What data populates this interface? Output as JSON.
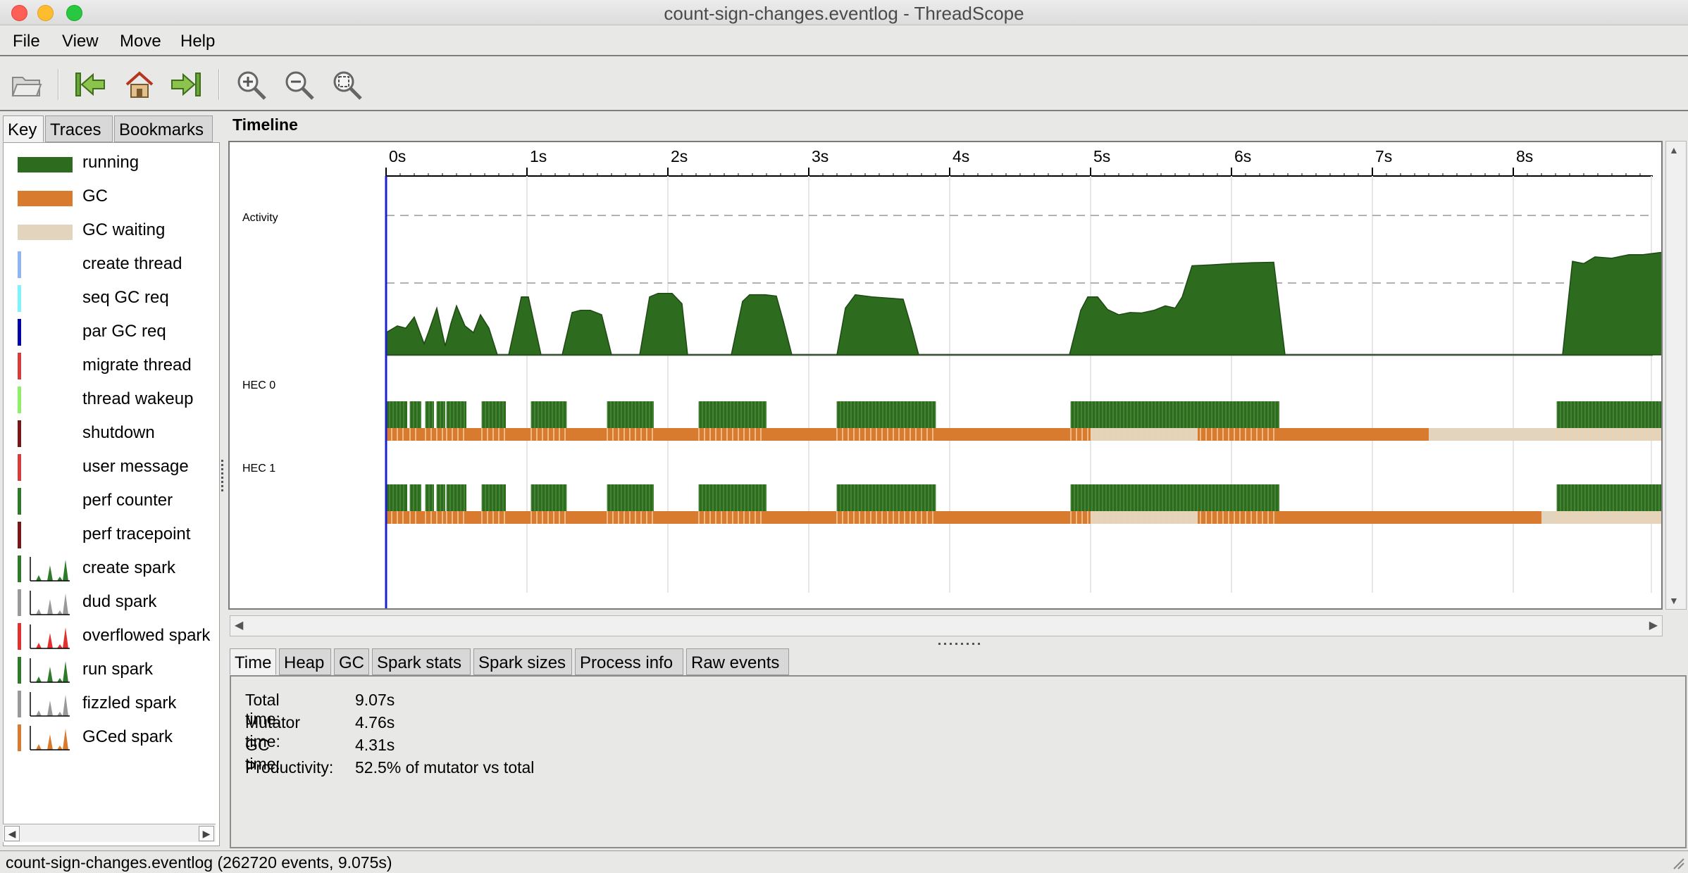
{
  "window": {
    "title": "count-sign-changes.eventlog - ThreadScope"
  },
  "menu": [
    "File",
    "View",
    "Move",
    "Help"
  ],
  "toolbar": {
    "icons": [
      "open-folder-icon",
      "jump-to-start-icon",
      "home-icon",
      "jump-to-end-icon",
      "zoom-in-icon",
      "zoom-out-icon",
      "zoom-fit-icon"
    ]
  },
  "left_tabs": [
    "Key",
    "Traces",
    "Bookmarks"
  ],
  "colors": {
    "running": "#2d6b1f",
    "gc": "#d97b2f",
    "gc_waiting": "#e3d5bd",
    "create_thread": "#8fb4f5",
    "seq_gc_req": "#7cf4f9",
    "par_gc_req": "#0000a8",
    "migrate_thread": "#d73c3c",
    "thread_wakeup": "#8ef066",
    "shutdown": "#7a1616",
    "user_message": "#d73c3c",
    "perf_counter": "#2d7a2a",
    "perf_tracepoint": "#7a1616",
    "spark_create": "#2d7a2a",
    "spark_dud": "#999999",
    "spark_overflowed": "#e3302e",
    "spark_run": "#2d7a2a",
    "spark_fizzled": "#999999",
    "spark_gced": "#d97b2f",
    "cursor": "#1a22c8"
  },
  "key": [
    {
      "label": "running",
      "kind": "swatch",
      "color_key": "running"
    },
    {
      "label": "GC",
      "kind": "swatch",
      "color_key": "gc"
    },
    {
      "label": "GC waiting",
      "kind": "swatch",
      "color_key": "gc_waiting"
    },
    {
      "label": "create thread",
      "kind": "bar",
      "color_key": "create_thread"
    },
    {
      "label": "seq GC req",
      "kind": "bar",
      "color_key": "seq_gc_req"
    },
    {
      "label": "par GC req",
      "kind": "bar",
      "color_key": "par_gc_req"
    },
    {
      "label": "migrate thread",
      "kind": "bar",
      "color_key": "migrate_thread"
    },
    {
      "label": "thread wakeup",
      "kind": "bar",
      "color_key": "thread_wakeup"
    },
    {
      "label": "shutdown",
      "kind": "bar",
      "color_key": "shutdown"
    },
    {
      "label": "user message",
      "kind": "bar",
      "color_key": "user_message"
    },
    {
      "label": "perf counter",
      "kind": "bar",
      "color_key": "perf_counter"
    },
    {
      "label": "perf tracepoint",
      "kind": "bar",
      "color_key": "perf_tracepoint"
    },
    {
      "label": "create spark",
      "kind": "spark",
      "color_key": "spark_create"
    },
    {
      "label": "dud spark",
      "kind": "spark",
      "color_key": "spark_dud"
    },
    {
      "label": "overflowed spark",
      "kind": "spark",
      "color_key": "spark_overflowed"
    },
    {
      "label": "run spark",
      "kind": "spark",
      "color_key": "spark_run"
    },
    {
      "label": "fizzled spark",
      "kind": "spark",
      "color_key": "spark_fizzled"
    },
    {
      "label": "GCed spark",
      "kind": "spark",
      "color_key": "spark_gced"
    }
  ],
  "timeline": {
    "title": "Timeline",
    "time_ticks": [
      "0s",
      "1s",
      "2s",
      "3s",
      "4s",
      "5s",
      "6s",
      "7s",
      "8s"
    ],
    "tracks": [
      "Activity",
      "HEC 0",
      "HEC 1"
    ],
    "view_range_s": [
      -1.1,
      9.0
    ],
    "total_time_s": 9.07,
    "activity_max": 2,
    "activity_profile": [
      [
        0.0,
        0.5
      ],
      [
        0.08,
        0.65
      ],
      [
        0.14,
        0.6
      ],
      [
        0.2,
        0.85
      ],
      [
        0.27,
        0.25
      ],
      [
        0.3,
        0.5
      ],
      [
        0.36,
        1.05
      ],
      [
        0.42,
        0.2
      ],
      [
        0.46,
        0.7
      ],
      [
        0.5,
        1.1
      ],
      [
        0.56,
        0.65
      ],
      [
        0.62,
        0.5
      ],
      [
        0.67,
        0.9
      ],
      [
        0.73,
        0.6
      ],
      [
        0.79,
        0.0
      ],
      [
        0.87,
        0.0
      ],
      [
        0.96,
        1.3
      ],
      [
        1.01,
        1.3
      ],
      [
        1.1,
        0.0
      ],
      [
        1.25,
        0.0
      ],
      [
        1.32,
        0.95
      ],
      [
        1.38,
        1.0
      ],
      [
        1.45,
        1.0
      ],
      [
        1.53,
        0.9
      ],
      [
        1.6,
        0.0
      ],
      [
        1.8,
        0.0
      ],
      [
        1.87,
        1.3
      ],
      [
        1.93,
        1.38
      ],
      [
        2.03,
        1.38
      ],
      [
        2.1,
        1.15
      ],
      [
        2.14,
        0.0
      ],
      [
        2.45,
        0.0
      ],
      [
        2.53,
        1.2
      ],
      [
        2.58,
        1.35
      ],
      [
        2.69,
        1.35
      ],
      [
        2.77,
        1.32
      ],
      [
        2.82,
        0.75
      ],
      [
        2.88,
        0.0
      ],
      [
        3.2,
        0.0
      ],
      [
        3.26,
        1.05
      ],
      [
        3.33,
        1.35
      ],
      [
        3.45,
        1.3
      ],
      [
        3.58,
        1.27
      ],
      [
        3.67,
        1.25
      ],
      [
        3.73,
        0.6
      ],
      [
        3.78,
        0.0
      ],
      [
        4.85,
        0.0
      ],
      [
        4.93,
        1.0
      ],
      [
        4.98,
        1.3
      ],
      [
        5.05,
        1.3
      ],
      [
        5.12,
        1.02
      ],
      [
        5.2,
        0.9
      ],
      [
        5.28,
        0.95
      ],
      [
        5.36,
        0.94
      ],
      [
        5.45,
        1.0
      ],
      [
        5.53,
        1.1
      ],
      [
        5.6,
        1.05
      ],
      [
        5.65,
        1.3
      ],
      [
        5.72,
        2.0
      ],
      [
        5.85,
        2.02
      ],
      [
        6.0,
        2.05
      ],
      [
        6.15,
        2.07
      ],
      [
        6.3,
        2.08
      ],
      [
        6.38,
        0.0
      ],
      [
        8.35,
        0.0
      ],
      [
        8.42,
        2.1
      ],
      [
        8.5,
        2.05
      ],
      [
        8.58,
        2.2
      ],
      [
        8.7,
        2.17
      ],
      [
        8.82,
        2.25
      ],
      [
        8.92,
        2.25
      ],
      [
        9.05,
        2.3
      ],
      [
        9.15,
        2.25
      ],
      [
        9.25,
        2.28
      ],
      [
        9.35,
        2.25
      ],
      [
        9.42,
        2.28
      ],
      [
        9.46,
        0.0
      ],
      [
        9.55,
        0.0
      ]
    ],
    "hec0": {
      "running": [
        [
          0.0,
          0.15
        ],
        [
          0.17,
          0.25
        ],
        [
          0.28,
          0.34
        ],
        [
          0.36,
          0.42
        ],
        [
          0.43,
          0.57
        ],
        [
          0.68,
          0.85
        ],
        [
          1.03,
          1.28
        ],
        [
          1.57,
          1.9
        ],
        [
          2.22,
          2.7
        ],
        [
          3.2,
          3.9
        ],
        [
          4.86,
          6.34
        ],
        [
          8.31,
          9.2
        ]
      ],
      "gc": [
        [
          0.0,
          5.0
        ],
        [
          5.76,
          6.34
        ],
        [
          6.34,
          7.4
        ]
      ],
      "gc_waiting": [
        [
          5.0,
          5.76
        ],
        [
          7.4,
          7.7
        ],
        [
          7.7,
          9.2
        ]
      ]
    },
    "hec1": {
      "running": [
        [
          0.0,
          0.15
        ],
        [
          0.17,
          0.25
        ],
        [
          0.28,
          0.34
        ],
        [
          0.36,
          0.42
        ],
        [
          0.43,
          0.57
        ],
        [
          0.68,
          0.85
        ],
        [
          1.03,
          1.28
        ],
        [
          1.57,
          1.9
        ],
        [
          2.22,
          2.7
        ],
        [
          3.2,
          3.9
        ],
        [
          4.86,
          6.34
        ],
        [
          8.31,
          9.2
        ]
      ],
      "gc": [
        [
          0.0,
          5.0
        ],
        [
          5.76,
          6.34
        ],
        [
          6.34,
          8.2
        ]
      ],
      "gc_waiting": [
        [
          5.0,
          5.76
        ],
        [
          8.2,
          9.55
        ]
      ]
    }
  },
  "info_tabs": [
    "Time",
    "Heap",
    "GC",
    "Spark stats",
    "Spark sizes",
    "Process info",
    "Raw events"
  ],
  "time_info": [
    {
      "label": "Total time:",
      "value": "9.07s"
    },
    {
      "label": "Mutator time:",
      "value": "4.76s"
    },
    {
      "label": "GC time:",
      "value": "4.31s"
    },
    {
      "label": "Productivity:",
      "value": "52.5% of mutator vs total"
    }
  ],
  "status": "count-sign-changes.eventlog (262720 events, 9.075s)"
}
